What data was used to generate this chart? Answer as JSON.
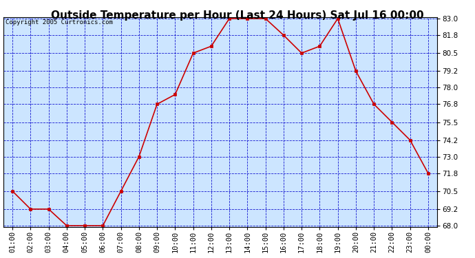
{
  "title": "Outside Temperature per Hour (Last 24 Hours) Sat Jul 16 00:00",
  "copyright": "Copyright 2005 Curtronics.com",
  "x_labels": [
    "01:00",
    "02:00",
    "03:00",
    "04:00",
    "05:00",
    "06:00",
    "07:00",
    "08:00",
    "09:00",
    "10:00",
    "11:00",
    "12:00",
    "13:00",
    "14:00",
    "15:00",
    "16:00",
    "17:00",
    "18:00",
    "19:00",
    "20:00",
    "21:00",
    "22:00",
    "23:00",
    "00:00"
  ],
  "y_values": [
    70.5,
    69.2,
    69.2,
    68.0,
    68.0,
    68.0,
    70.5,
    73.0,
    76.8,
    77.5,
    80.5,
    81.0,
    83.0,
    83.0,
    83.0,
    81.8,
    80.5,
    81.0,
    83.0,
    79.2,
    76.8,
    75.5,
    74.2,
    71.8
  ],
  "ylim_min": 68.0,
  "ylim_max": 83.0,
  "yticks": [
    68.0,
    69.2,
    70.5,
    71.8,
    73.0,
    74.2,
    75.5,
    76.8,
    78.0,
    79.2,
    80.5,
    81.8,
    83.0
  ],
  "line_color": "#cc0000",
  "marker_color": "#cc0000",
  "background_color": "#cce5ff",
  "grid_color": "#0000cc",
  "title_fontsize": 11,
  "tick_fontsize": 7.5,
  "copyright_fontsize": 6.5,
  "outer_bg": "#ffffff"
}
